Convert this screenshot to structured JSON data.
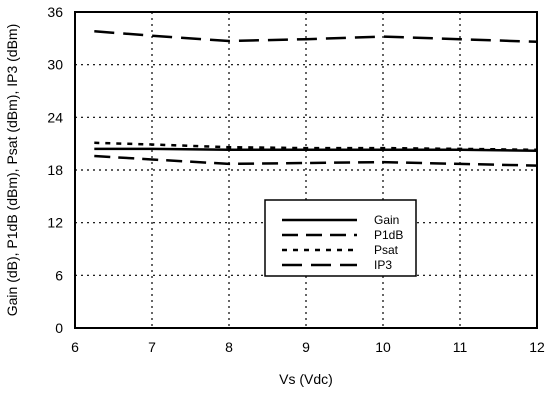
{
  "chart_data": {
    "type": "line",
    "title": "",
    "xlabel": "Vs (Vdc)",
    "ylabel": "Gain (dB), P1dB (dBm), Psat (dBm), IP3 (dBm)",
    "xlim": [
      6,
      12
    ],
    "ylim": [
      0,
      36
    ],
    "x_ticks": [
      6,
      7,
      8,
      9,
      10,
      11,
      12
    ],
    "y_ticks": [
      0,
      6,
      12,
      18,
      24,
      30,
      36
    ],
    "grid": true,
    "grid_style": "dotted",
    "legend_position": "center-right",
    "series": [
      {
        "name": "Gain",
        "style": "solid",
        "x": [
          6.25,
          7,
          8,
          9,
          10,
          11,
          12
        ],
        "y": [
          20.4,
          20.4,
          20.3,
          20.3,
          20.3,
          20.3,
          20.2
        ]
      },
      {
        "name": "P1dB",
        "style": "dash",
        "x": [
          6.25,
          7,
          8,
          9,
          10,
          11,
          12
        ],
        "y": [
          19.6,
          19.2,
          18.7,
          18.8,
          18.9,
          18.7,
          18.5
        ]
      },
      {
        "name": "Psat",
        "style": "dot",
        "x": [
          6.25,
          7,
          8,
          9,
          10,
          11,
          12
        ],
        "y": [
          21.1,
          20.9,
          20.6,
          20.5,
          20.5,
          20.4,
          20.3
        ]
      },
      {
        "name": "IP3",
        "style": "longdash",
        "x": [
          6.25,
          7,
          8,
          9,
          10,
          11,
          12
        ],
        "y": [
          33.8,
          33.3,
          32.7,
          32.9,
          33.2,
          32.9,
          32.6
        ]
      }
    ]
  }
}
